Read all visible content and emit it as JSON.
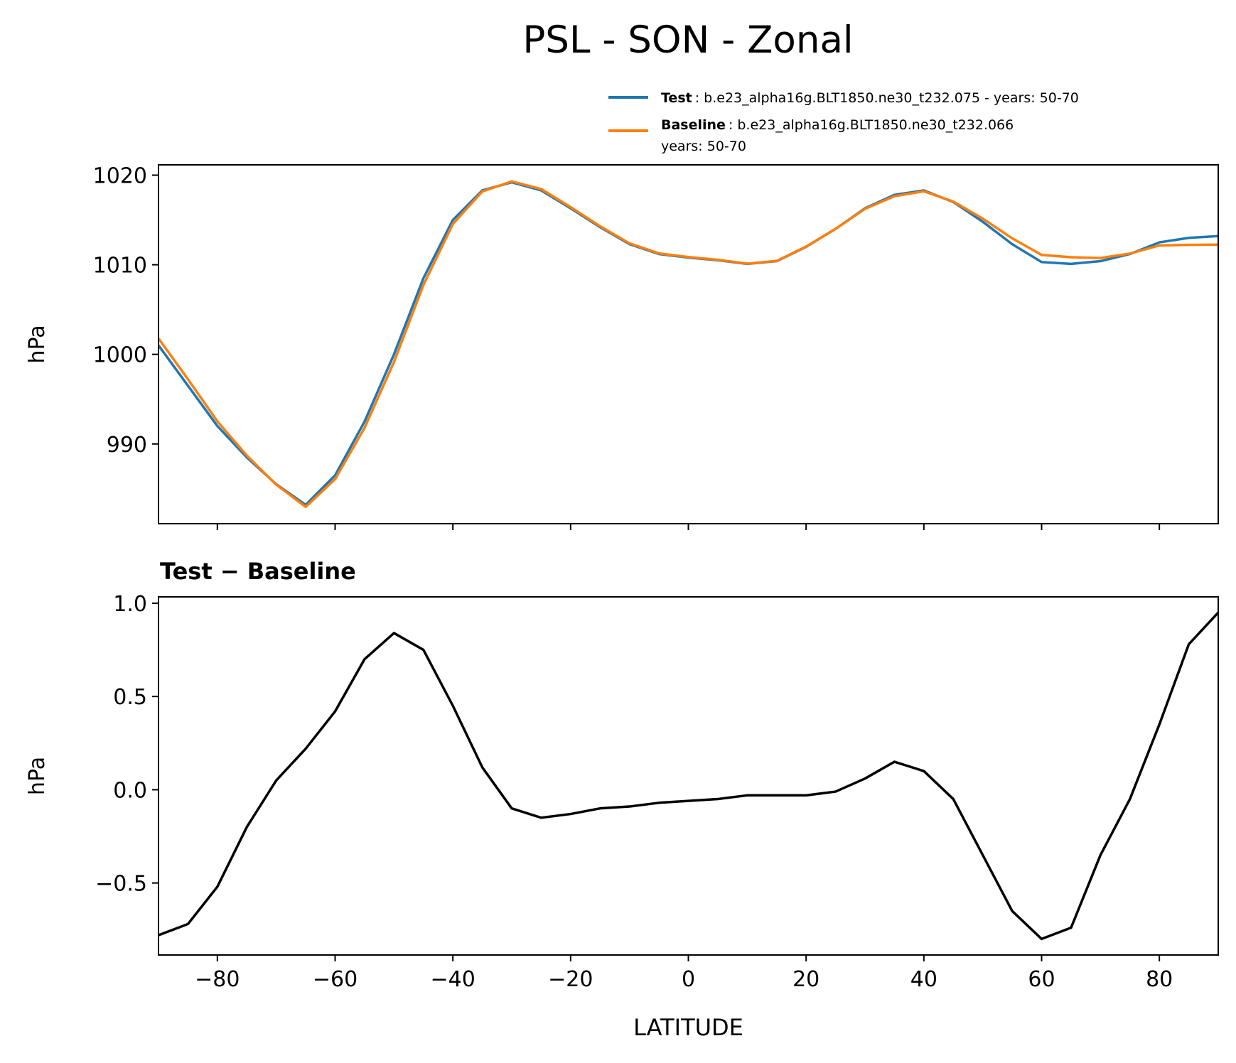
{
  "title": "PSL - SON - Zonal",
  "chart_data": [
    {
      "type": "line",
      "ylabel": "hPa",
      "x": [
        -90,
        -85,
        -80,
        -75,
        -70,
        -65,
        -60,
        -55,
        -50,
        -45,
        -40,
        -35,
        -30,
        -25,
        -20,
        -15,
        -10,
        -5,
        0,
        5,
        10,
        15,
        20,
        25,
        30,
        35,
        40,
        45,
        50,
        55,
        60,
        65,
        70,
        75,
        80,
        85,
        90
      ],
      "series": [
        {
          "name": "Test",
          "description": [
            ": b.e23_alpha16g.BLT1850.ne30_t232.075 - years: 50-70"
          ],
          "color": "#1f77b4",
          "values": [
            1001,
            996.5,
            992,
            988.5,
            985.5,
            983.2,
            986.5,
            992.5,
            1000,
            1008.5,
            1015,
            1018.3,
            1019.2,
            1018.3,
            1016.3,
            1014.2,
            1012.3,
            1011.2,
            1010.8,
            1010.5,
            1010.1,
            1010.4,
            1012,
            1014,
            1016.3,
            1017.8,
            1018.3,
            1017,
            1014.8,
            1012.3,
            1010.3,
            1010.1,
            1010.4,
            1011.2,
            1012.5,
            1013,
            1013.2
          ]
        },
        {
          "name": "Baseline",
          "description": [
            ": b.e23_alpha16g.BLT1850.ne30_t232.066",
            "years: 50-70"
          ],
          "color": "#ff7f0e",
          "values": [
            1001.78,
            997.22,
            992.52,
            988.7,
            985.45,
            982.98,
            986.08,
            991.8,
            999.16,
            1007.75,
            1014.55,
            1018.18,
            1019.3,
            1018.45,
            1016.43,
            1014.3,
            1012.39,
            1011.27,
            1010.86,
            1010.55,
            1010.13,
            1010.43,
            1012.03,
            1014.01,
            1016.24,
            1017.65,
            1018.2,
            1017.05,
            1015.15,
            1012.95,
            1011.1,
            1010.84,
            1010.75,
            1011.25,
            1012.15,
            1012.22,
            1012.25
          ]
        }
      ],
      "xlim": [
        -90,
        90
      ],
      "ylim": [
        981.1,
        1021.15
      ],
      "xticks": [
        {
          "value": -80,
          "label": "−80"
        },
        {
          "value": -60,
          "label": "−60"
        },
        {
          "value": -40,
          "label": "−40"
        },
        {
          "value": -20,
          "label": "−20"
        },
        0,
        20,
        40,
        60,
        80
      ],
      "yticks": [
        990,
        1000,
        1010,
        1020
      ]
    },
    {
      "type": "line",
      "title": "Test − Baseline",
      "ylabel": "hPa",
      "xlabel": "LATITUDE",
      "color": "#000000",
      "x": [
        -90,
        -85,
        -80,
        -75,
        -70,
        -65,
        -60,
        -55,
        -50,
        -45,
        -40,
        -35,
        -30,
        -25,
        -20,
        -15,
        -10,
        -5,
        0,
        5,
        10,
        15,
        20,
        25,
        30,
        35,
        40,
        45,
        50,
        55,
        60,
        65,
        70,
        75,
        80,
        85,
        90
      ],
      "values": [
        -0.78,
        -0.72,
        -0.52,
        -0.2,
        0.05,
        0.22,
        0.42,
        0.7,
        0.84,
        0.75,
        0.45,
        0.12,
        -0.1,
        -0.15,
        -0.13,
        -0.1,
        -0.09,
        -0.07,
        -0.06,
        -0.05,
        -0.03,
        -0.03,
        -0.03,
        -0.01,
        0.06,
        0.15,
        0.1,
        -0.05,
        -0.35,
        -0.65,
        -0.8,
        -0.74,
        -0.35,
        -0.05,
        0.35,
        0.78,
        0.95
      ],
      "xlim": [
        -90,
        90
      ],
      "ylim": [
        -0.886,
        1.034
      ],
      "xticks": [
        {
          "value": -80,
          "label": "−80"
        },
        {
          "value": -60,
          "label": "−60"
        },
        {
          "value": -40,
          "label": "−40"
        },
        {
          "value": -20,
          "label": "−20"
        },
        0,
        20,
        40,
        60,
        80
      ],
      "yticks": [
        {
          "value": -0.5,
          "label": "−0.5"
        },
        {
          "value": 0,
          "label": "0.0"
        },
        0.5,
        {
          "value": 1,
          "label": "1.0"
        }
      ]
    }
  ]
}
